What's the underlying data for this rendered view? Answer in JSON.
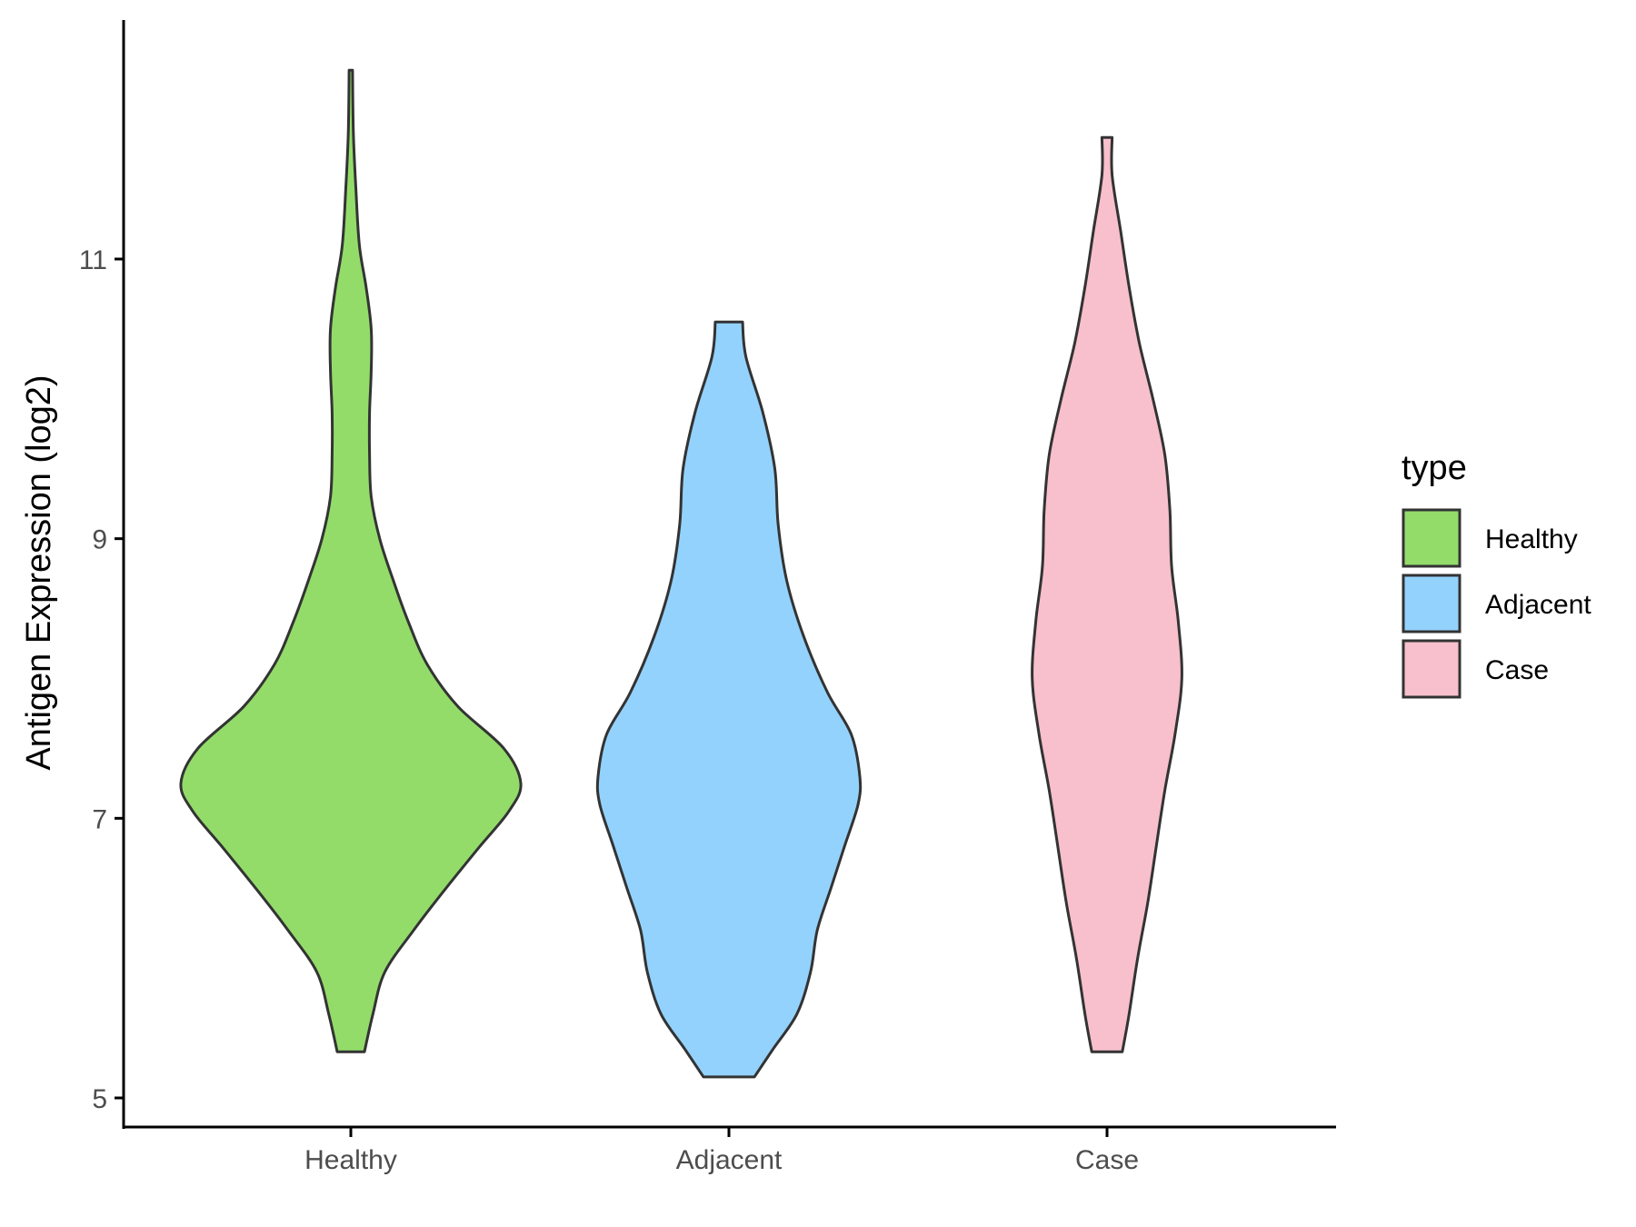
{
  "chart_data": {
    "type": "violin",
    "title": "",
    "xlabel": "",
    "ylabel": "Antigen Expression (log2)",
    "ylim": [
      4.8,
      12.85
    ],
    "yticks": [
      5,
      7,
      9,
      11
    ],
    "grid": false,
    "legend": {
      "title": "type",
      "placement": "right",
      "entries": [
        {
          "label": "Healthy",
          "color": "#93dc6a"
        },
        {
          "label": "Adjacent",
          "color": "#93d2fd"
        },
        {
          "label": "Case",
          "color": "#f7c0cc"
        }
      ]
    },
    "categories": [
      "Healthy",
      "Adjacent",
      "Case"
    ],
    "outline_color": "#333333",
    "series": [
      {
        "category": "Healthy",
        "color": "#93dc6a",
        "min": 5.33,
        "max": 12.35,
        "density_profile": [
          [
            5.33,
            0.08
          ],
          [
            5.6,
            0.13
          ],
          [
            5.9,
            0.2
          ],
          [
            6.2,
            0.37
          ],
          [
            6.5,
            0.56
          ],
          [
            6.8,
            0.76
          ],
          [
            7.05,
            0.93
          ],
          [
            7.25,
            1.0
          ],
          [
            7.5,
            0.9
          ],
          [
            7.8,
            0.63
          ],
          [
            8.1,
            0.45
          ],
          [
            8.4,
            0.34
          ],
          [
            8.7,
            0.25
          ],
          [
            9.0,
            0.17
          ],
          [
            9.3,
            0.12
          ],
          [
            9.6,
            0.11
          ],
          [
            9.9,
            0.11
          ],
          [
            10.2,
            0.12
          ],
          [
            10.5,
            0.12
          ],
          [
            10.8,
            0.09
          ],
          [
            11.1,
            0.05
          ],
          [
            11.5,
            0.03
          ],
          [
            11.9,
            0.015
          ],
          [
            12.35,
            0.01
          ]
        ]
      },
      {
        "category": "Adjacent",
        "color": "#93d2fd",
        "min": 5.15,
        "max": 10.55,
        "density_profile": [
          [
            5.15,
            0.15
          ],
          [
            5.35,
            0.26
          ],
          [
            5.6,
            0.4
          ],
          [
            5.9,
            0.48
          ],
          [
            6.2,
            0.52
          ],
          [
            6.5,
            0.6
          ],
          [
            6.8,
            0.68
          ],
          [
            7.1,
            0.76
          ],
          [
            7.3,
            0.77
          ],
          [
            7.6,
            0.72
          ],
          [
            7.9,
            0.58
          ],
          [
            8.3,
            0.44
          ],
          [
            8.7,
            0.34
          ],
          [
            9.1,
            0.29
          ],
          [
            9.5,
            0.27
          ],
          [
            9.9,
            0.2
          ],
          [
            10.3,
            0.1
          ],
          [
            10.55,
            0.08
          ]
        ]
      },
      {
        "category": "Case",
        "color": "#f7c0cc",
        "min": 5.33,
        "max": 11.87,
        "density_profile": [
          [
            5.33,
            0.09
          ],
          [
            5.6,
            0.13
          ],
          [
            6.0,
            0.18
          ],
          [
            6.4,
            0.24
          ],
          [
            6.8,
            0.29
          ],
          [
            7.2,
            0.34
          ],
          [
            7.6,
            0.4
          ],
          [
            8.0,
            0.44
          ],
          [
            8.4,
            0.42
          ],
          [
            8.8,
            0.38
          ],
          [
            9.2,
            0.37
          ],
          [
            9.6,
            0.34
          ],
          [
            10.0,
            0.27
          ],
          [
            10.4,
            0.19
          ],
          [
            10.8,
            0.13
          ],
          [
            11.2,
            0.08
          ],
          [
            11.6,
            0.03
          ],
          [
            11.87,
            0.03
          ]
        ]
      }
    ]
  }
}
